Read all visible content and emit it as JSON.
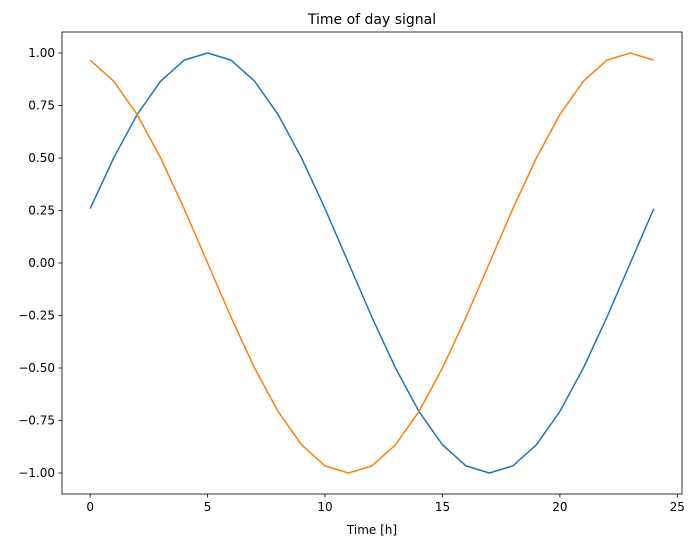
{
  "chart_data": {
    "type": "line",
    "title": "Time of day signal",
    "xlabel": "Time [h]",
    "ylabel": "",
    "xlim": [
      -1.2,
      25.2
    ],
    "ylim": [
      -1.1,
      1.1
    ],
    "xticks": [
      0,
      5,
      10,
      15,
      20,
      25
    ],
    "yticks": [
      1.0,
      0.75,
      0.5,
      0.25,
      0.0,
      -0.25,
      -0.5,
      -0.75,
      -1.0
    ],
    "ytick_labels": [
      "1.00",
      "0.75",
      "0.50",
      "0.25",
      "0.00",
      "−0.25",
      "−0.50",
      "−0.75",
      "−1.00"
    ],
    "grid": false,
    "x": [
      0,
      1,
      2,
      3,
      4,
      5,
      6,
      7,
      8,
      9,
      10,
      11,
      12,
      13,
      14,
      15,
      16,
      17,
      18,
      19,
      20,
      21,
      22,
      23,
      24
    ],
    "series": [
      {
        "color": "#1f77b4",
        "values": [
          0.259,
          0.5,
          0.707,
          0.866,
          0.966,
          1,
          0.966,
          0.866,
          0.707,
          0.5,
          0.259,
          0,
          -0.259,
          -0.5,
          -0.707,
          -0.866,
          -0.966,
          -1,
          -0.966,
          -0.866,
          -0.707,
          -0.5,
          -0.259,
          0,
          0.259
        ]
      },
      {
        "color": "#ff7f0e",
        "values": [
          0.966,
          0.866,
          0.707,
          0.5,
          0.259,
          0,
          -0.259,
          -0.5,
          -0.707,
          -0.866,
          -0.966,
          -1,
          -0.966,
          -0.866,
          -0.707,
          -0.5,
          -0.259,
          0,
          0.259,
          0.5,
          0.707,
          0.866,
          0.966,
          1,
          0.966
        ]
      }
    ]
  }
}
